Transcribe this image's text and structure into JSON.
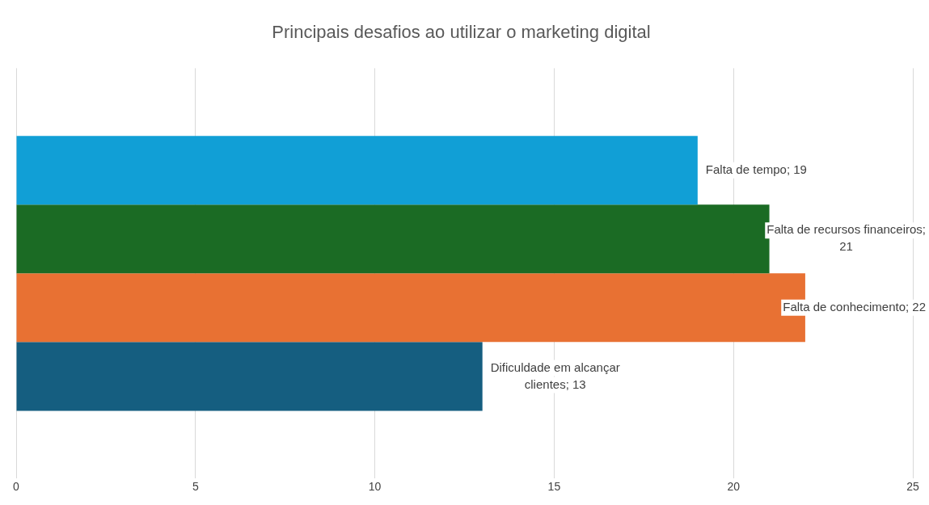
{
  "chart_data": {
    "type": "bar",
    "orientation": "horizontal",
    "title": "Principais desafios ao utilizar o marketing digital",
    "categories": [
      null
    ],
    "series": [
      {
        "color": "#119fd6",
        "values": [
          19
        ],
        "value_labels": [
          "Falta de tempo; 19"
        ]
      },
      {
        "color": "#1b6b24",
        "values": [
          21
        ],
        "value_labels": [
          "Falta de recursos financeiros; 21"
        ]
      },
      {
        "color": "#e87133",
        "values": [
          22
        ],
        "value_labels": [
          "Falta de conhecimento; 22"
        ]
      },
      {
        "color": "#155e80",
        "values": [
          13
        ],
        "value_labels": [
          "Dificuldade em alcançar clientes; 13"
        ]
      }
    ],
    "xlim": [
      0,
      25
    ],
    "xticks": [
      0,
      5,
      10,
      15,
      20,
      25
    ],
    "grid": "x",
    "tick_labels": "x",
    "legend": false
  }
}
